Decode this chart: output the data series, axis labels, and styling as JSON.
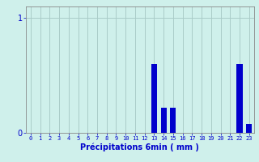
{
  "hours": [
    0,
    1,
    2,
    3,
    4,
    5,
    6,
    7,
    8,
    9,
    10,
    11,
    12,
    13,
    14,
    15,
    16,
    17,
    18,
    19,
    20,
    21,
    22,
    23
  ],
  "values": [
    0,
    0,
    0,
    0,
    0,
    0,
    0,
    0,
    0,
    0,
    0,
    0,
    0,
    0.6,
    0.22,
    0.22,
    0,
    0,
    0,
    0,
    0,
    0,
    0.6,
    0.08
  ],
  "bar_color": "#0000cc",
  "bg_color": "#cff0eb",
  "grid_color": "#aaccc8",
  "xlabel": "Précipitations 6min ( mm )",
  "xlabel_color": "#0000cc",
  "tick_color": "#0000cc",
  "ylim_max": 1.1,
  "yticks": [
    0,
    1
  ],
  "ytick_labels": [
    "0",
    "1"
  ]
}
